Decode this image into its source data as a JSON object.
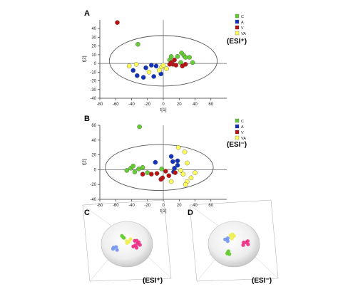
{
  "panels": {
    "A": {
      "label": "A",
      "mode": "(ESI⁺)"
    },
    "B": {
      "label": "B",
      "mode": "(ESI⁻)"
    },
    "C": {
      "label": "C",
      "mode": "(ESI⁺)"
    },
    "D": {
      "label": "D",
      "mode": "(ESI⁻)"
    }
  },
  "legend": [
    {
      "key": "C",
      "color": "#66cc33"
    },
    {
      "key": "A",
      "color": "#1133bb"
    },
    {
      "key": "V",
      "color": "#bb1111"
    },
    {
      "key": "VA",
      "color": "#ffff55"
    }
  ],
  "chart_data": [
    {
      "type": "scatter",
      "panel": "A",
      "xlabel": "t[1]",
      "ylabel": "t[2]",
      "xlim": [
        -80,
        80
      ],
      "ylim": [
        -40,
        50
      ],
      "xticks": [
        -80,
        -60,
        -40,
        -20,
        0,
        20,
        40,
        60
      ],
      "yticks": [
        -40,
        -30,
        -20,
        -10,
        0,
        10,
        20,
        30,
        40
      ],
      "grid": false,
      "legend_position": "top-right",
      "ellipse": {
        "cx": 0,
        "cy": 3,
        "rx": 68,
        "ry": 29
      },
      "series": [
        {
          "name": "C",
          "color": "#66cc33",
          "points": [
            [
              -32,
              22
            ],
            [
              18,
              8
            ],
            [
              23,
              12
            ],
            [
              26,
              9
            ],
            [
              28,
              7
            ],
            [
              33,
              7
            ],
            [
              37,
              1
            ],
            [
              22,
              1
            ],
            [
              8,
              4
            ],
            [
              10,
              8
            ]
          ]
        },
        {
          "name": "A",
          "color": "#1133bb",
          "points": [
            [
              -38,
              -8
            ],
            [
              -33,
              -14
            ],
            [
              -25,
              -16
            ],
            [
              -22,
              -5
            ],
            [
              -15,
              -2
            ],
            [
              -12,
              -15
            ],
            [
              -3,
              -12
            ],
            [
              -9,
              -3
            ]
          ]
        },
        {
          "name": "V",
          "color": "#bb1111",
          "points": [
            [
              -58,
              47
            ],
            [
              12,
              -1
            ],
            [
              16,
              -2
            ],
            [
              24,
              -3
            ],
            [
              28,
              -1
            ],
            [
              10,
              1
            ],
            [
              14,
              4
            ],
            [
              8,
              -1
            ]
          ]
        },
        {
          "name": "VA",
          "color": "#ffff55",
          "points": [
            [
              -43,
              -3
            ],
            [
              -34,
              -1
            ],
            [
              -18,
              -10
            ],
            [
              -2,
              -4
            ],
            [
              4,
              -6
            ],
            [
              -5,
              -8
            ],
            [
              0,
              -2
            ]
          ]
        }
      ]
    },
    {
      "type": "scatter",
      "panel": "B",
      "xlabel": "t[1]",
      "ylabel": "t[2]",
      "xlim": [
        -80,
        80
      ],
      "ylim": [
        -40,
        60
      ],
      "xticks": [
        -80,
        -60,
        -40,
        -20,
        0,
        20,
        40,
        60
      ],
      "yticks": [
        -40,
        -20,
        0,
        20,
        40,
        60
      ],
      "grid": false,
      "legend_position": "top-right",
      "ellipse": {
        "cx": -5,
        "cy": 3,
        "rx": 68,
        "ry": 31
      },
      "series": [
        {
          "name": "C",
          "color": "#66cc33",
          "points": [
            [
              -41,
              2
            ],
            [
              -36,
              -3
            ],
            [
              -31,
              1
            ],
            [
              -26,
              3
            ],
            [
              -46,
              -1
            ],
            [
              -20,
              -4
            ],
            [
              -2,
              1
            ],
            [
              -38,
              5
            ],
            [
              -30,
              58
            ]
          ]
        },
        {
          "name": "A",
          "color": "#1133bb",
          "points": [
            [
              10,
              18
            ],
            [
              12,
              11
            ],
            [
              14,
              2
            ],
            [
              18,
              6
            ],
            [
              -10,
              10
            ],
            [
              18,
              12
            ],
            [
              13,
              -3
            ]
          ]
        },
        {
          "name": "V",
          "color": "#bb1111",
          "points": [
            [
              -26,
              -6
            ],
            [
              -15,
              -6
            ],
            [
              -1,
              -11
            ],
            [
              3,
              -2
            ],
            [
              7,
              -8
            ],
            [
              15,
              -4
            ],
            [
              -8,
              -5
            ],
            [
              -3,
              -13
            ]
          ]
        },
        {
          "name": "VA",
          "color": "#ffff55",
          "points": [
            [
              19,
              30
            ],
            [
              27,
              24
            ],
            [
              30,
              9
            ],
            [
              22,
              -1
            ],
            [
              25,
              -6
            ],
            [
              30,
              -16
            ],
            [
              35,
              -11
            ],
            [
              40,
              -4
            ],
            [
              28,
              -20
            ],
            [
              10,
              -16
            ]
          ]
        }
      ]
    },
    {
      "type": "scatter",
      "panel": "C",
      "view": "3d",
      "mode": "ESI+",
      "series": [
        {
          "name": "C",
          "color": "#66cc33",
          "points": [
            [
              -20,
              25,
              30
            ],
            [
              -15,
              20,
              28
            ],
            [
              -18,
              22,
              33
            ]
          ]
        },
        {
          "name": "A",
          "color": "#7799ee",
          "points": [
            [
              -30,
              -10,
              0
            ],
            [
              -25,
              -5,
              5
            ],
            [
              -28,
              -8,
              -3
            ],
            [
              -22,
              -12,
              2
            ]
          ]
        },
        {
          "name": "V",
          "color": "#ee3388",
          "points": [
            [
              20,
              5,
              -10
            ],
            [
              25,
              0,
              -5
            ],
            [
              22,
              -5,
              -12
            ],
            [
              28,
              2,
              -8
            ],
            [
              18,
              -8,
              -14
            ],
            [
              30,
              -3,
              -6
            ],
            [
              24,
              -10,
              -10
            ],
            [
              26,
              4,
              -15
            ]
          ]
        },
        {
          "name": "VA",
          "color": "#eeee55",
          "points": [
            [
              -5,
              10,
              15
            ],
            [
              0,
              8,
              12
            ],
            [
              2,
              15,
              18
            ],
            [
              -3,
              5,
              10
            ]
          ]
        }
      ]
    },
    {
      "type": "scatter",
      "panel": "D",
      "view": "3d",
      "mode": "ESI-",
      "series": [
        {
          "name": "C",
          "color": "#66cc33",
          "points": [
            [
              -10,
              -20,
              -10
            ],
            [
              -5,
              -25,
              -15
            ],
            [
              -8,
              -18,
              -12
            ],
            [
              -12,
              -22,
              -8
            ]
          ]
        },
        {
          "name": "A",
          "color": "#7799ee",
          "points": [
            [
              -25,
              15,
              20
            ],
            [
              -20,
              18,
              22
            ],
            [
              -18,
              10,
              15
            ]
          ]
        },
        {
          "name": "V",
          "color": "#ee3388",
          "points": [
            [
              25,
              5,
              5
            ],
            [
              30,
              0,
              2
            ],
            [
              28,
              8,
              6
            ],
            [
              20,
              -2,
              0
            ],
            [
              22,
              3,
              -3
            ]
          ]
        },
        {
          "name": "VA",
          "color": "#eeee55",
          "points": [
            [
              -15,
              25,
              25
            ],
            [
              -10,
              20,
              22
            ],
            [
              -12,
              28,
              30
            ],
            [
              -5,
              22,
              18
            ],
            [
              -8,
              15,
              12
            ]
          ]
        }
      ]
    }
  ]
}
